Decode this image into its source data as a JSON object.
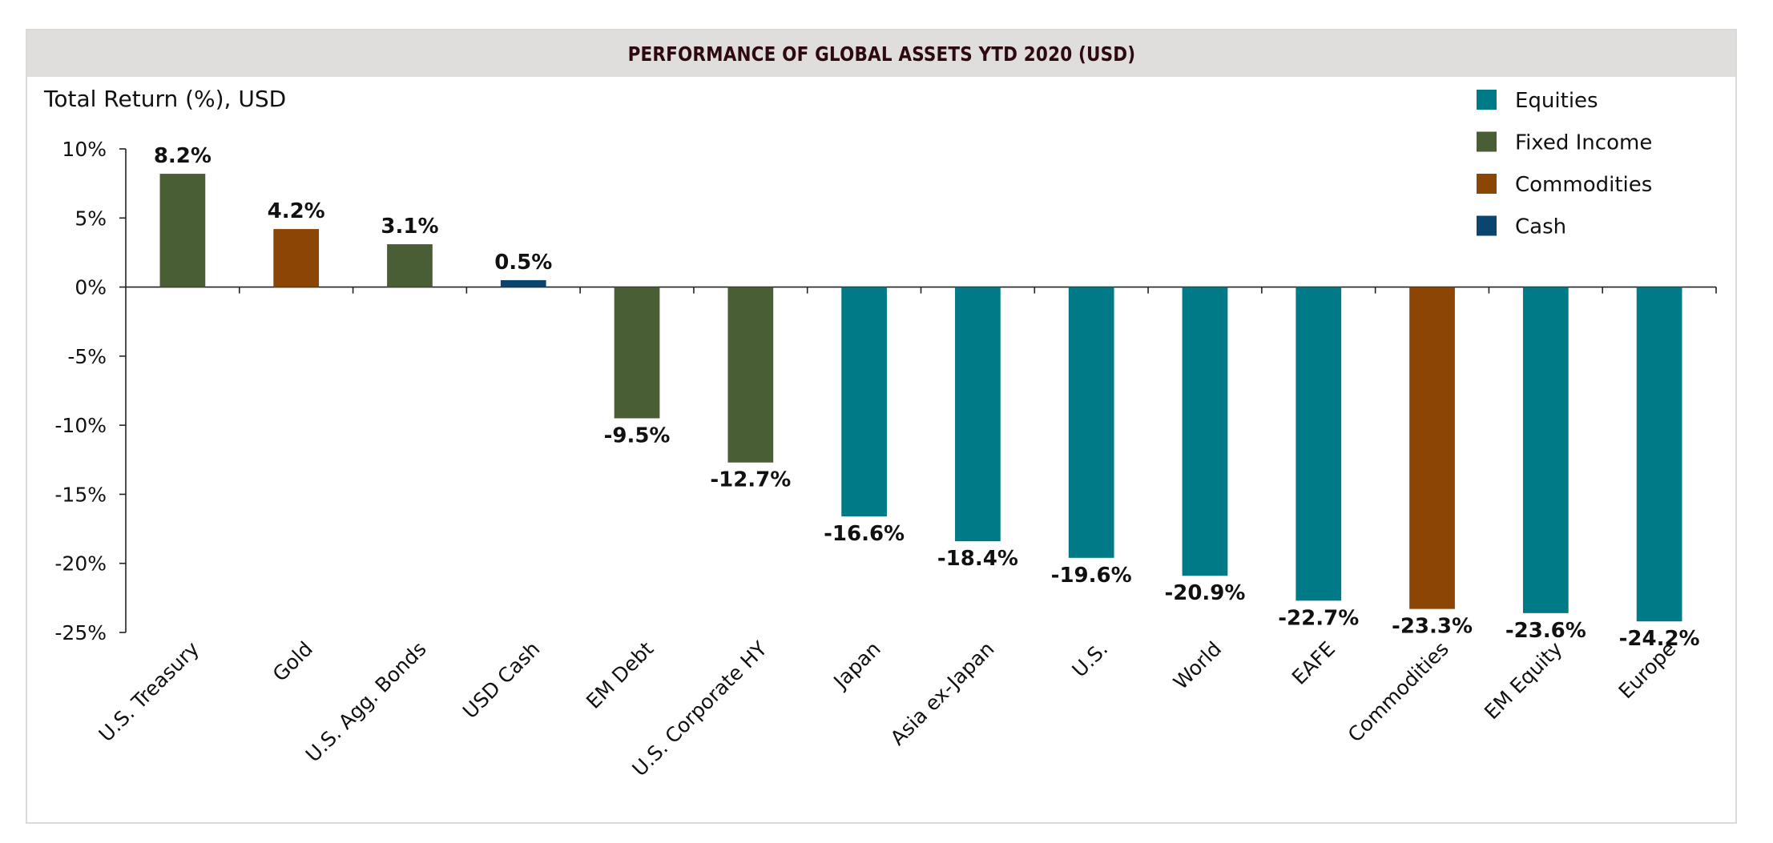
{
  "chart_data": {
    "type": "bar",
    "title": "PERFORMANCE OF GLOBAL ASSETS YTD 2020 (USD)",
    "xlabel": "",
    "ylabel": "Total Return (%), USD",
    "ylim": [
      -25,
      10
    ],
    "yticks": [
      10,
      5,
      0,
      -5,
      -10,
      -15,
      -20,
      -25
    ],
    "ytick_labels": [
      "10%",
      "5%",
      "0%",
      "-5%",
      "-10%",
      "-15%",
      "-20%",
      "-25%"
    ],
    "grid": false,
    "legend_position": "top-right",
    "categories": [
      "U.S. Treasury",
      "Gold",
      "U.S. Agg. Bonds",
      "USD Cash",
      "EM Debt",
      "U.S. Corporate HY",
      "Japan",
      "Asia ex-Japan",
      "U.S.",
      "World",
      "EAFE",
      "Commodities",
      "EM Equity",
      "Europe"
    ],
    "values": [
      8.2,
      4.2,
      3.1,
      0.5,
      -9.5,
      -12.7,
      -16.6,
      -18.4,
      -19.6,
      -20.9,
      -22.7,
      -23.3,
      -23.6,
      -24.2
    ],
    "data_labels": [
      "8.2%",
      "4.2%",
      "3.1%",
      "0.5%",
      "-9.5%",
      "-12.7%",
      "-16.6%",
      "-18.4%",
      "-19.6%",
      "-20.9%",
      "-22.7%",
      "-23.3%",
      "-23.6%",
      "-24.2%"
    ],
    "asset_class": [
      "Fixed Income",
      "Commodities",
      "Fixed Income",
      "Cash",
      "Fixed Income",
      "Fixed Income",
      "Equities",
      "Equities",
      "Equities",
      "Equities",
      "Equities",
      "Commodities",
      "Equities",
      "Equities"
    ],
    "legend": [
      {
        "name": "Equities",
        "color": "#007a86"
      },
      {
        "name": "Fixed Income",
        "color": "#4a5e36"
      },
      {
        "name": "Commodities",
        "color": "#8b4505"
      },
      {
        "name": "Cash",
        "color": "#0a4570"
      }
    ]
  }
}
